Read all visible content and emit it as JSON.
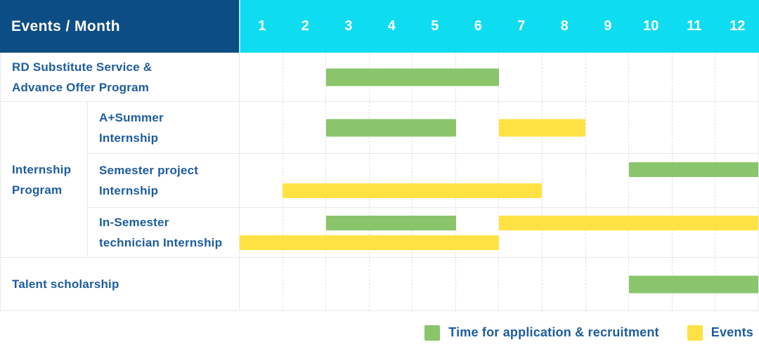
{
  "header": {
    "title": "Events / Month",
    "months": [
      "1",
      "2",
      "3",
      "4",
      "5",
      "6",
      "7",
      "8",
      "9",
      "10",
      "11",
      "12"
    ]
  },
  "legend": {
    "items": [
      {
        "type": "recruitment",
        "label": "Time for application & recruitment"
      },
      {
        "type": "event",
        "label": "Events"
      }
    ]
  },
  "colors": {
    "recruitment": "#8ac56b",
    "event": "#fee243",
    "header_navy": "#0d4d85",
    "header_cyan": "#0edcf0",
    "label_blue": "#1d5c9f",
    "grid_line": "#e9e9e9"
  },
  "chart_data": {
    "type": "table",
    "subtype": "gantt",
    "title": "Events / Month",
    "x_axis": {
      "label": "Month",
      "ticks": [
        "1",
        "2",
        "3",
        "4",
        "5",
        "6",
        "7",
        "8",
        "9",
        "10",
        "11",
        "12"
      ],
      "range": [
        1,
        12
      ]
    },
    "grid": true,
    "legend_position": "bottom-right",
    "series": [
      {
        "name": "Time for application & recruitment",
        "type": "recruitment",
        "color": "#8ac56b"
      },
      {
        "name": "Events",
        "type": "event",
        "color": "#fee243"
      }
    ],
    "rows": [
      {
        "event": "RD Substitute Service & Advance Offer Program",
        "group": "",
        "spans": [
          {
            "type": "recruitment",
            "series": "Time for application & recruitment",
            "start_month": 3,
            "end_month": 6,
            "lane": "center"
          }
        ]
      },
      {
        "event": "A+Summer Internship",
        "group": "Internship Program",
        "spans": [
          {
            "type": "recruitment",
            "series": "Time for application & recruitment",
            "start_month": 3,
            "end_month": 5,
            "lane": "center"
          },
          {
            "type": "event",
            "series": "Events",
            "start_month": 7,
            "end_month": 8,
            "lane": "center"
          }
        ]
      },
      {
        "event": "Semester project Internship",
        "group": "Internship Program",
        "spans": [
          {
            "type": "recruitment",
            "series": "Time for application & recruitment",
            "start_month": 10,
            "end_month": 12,
            "lane": "top"
          },
          {
            "type": "event",
            "series": "Events",
            "start_month": 2,
            "end_month": 7,
            "lane": "bottom"
          }
        ]
      },
      {
        "event": "In-Semester technician Internship",
        "group": "Internship Program",
        "spans": [
          {
            "type": "recruitment",
            "series": "Time for application & recruitment",
            "start_month": 3,
            "end_month": 5,
            "lane": "top"
          },
          {
            "type": "event",
            "series": "Events",
            "start_month": 7,
            "end_month": 12,
            "lane": "top"
          },
          {
            "type": "event",
            "series": "Events",
            "start_month": 1,
            "end_month": 6,
            "lane": "bottom"
          }
        ]
      },
      {
        "event": "Talent scholarship",
        "group": "",
        "spans": [
          {
            "type": "recruitment",
            "series": "Time for application & recruitment",
            "start_month": 10,
            "end_month": 12,
            "lane": "center"
          }
        ]
      }
    ]
  }
}
